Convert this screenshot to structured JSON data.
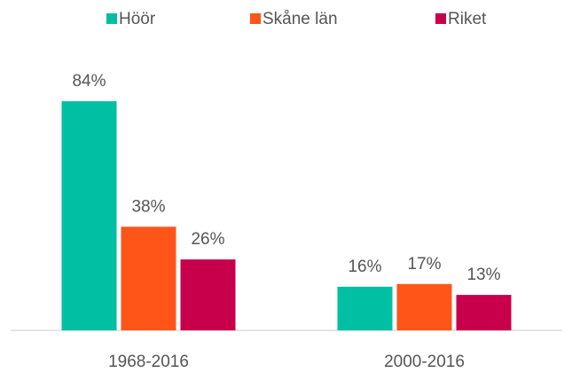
{
  "chart_data": {
    "type": "bar",
    "categories": [
      "1968-2016",
      "2000-2016"
    ],
    "series": [
      {
        "name": "Höör",
        "color": "#00bfa3",
        "values": [
          84,
          16
        ],
        "value_labels": [
          "84%",
          "16%"
        ]
      },
      {
        "name": "Skåne län",
        "color": "#ff5519",
        "values": [
          38,
          17
        ],
        "value_labels": [
          "38%",
          "17%"
        ]
      },
      {
        "name": "Riket",
        "color": "#c8004b",
        "values": [
          26,
          13
        ],
        "value_labels": [
          "26%",
          "13%"
        ]
      }
    ],
    "legend": "top"
  }
}
